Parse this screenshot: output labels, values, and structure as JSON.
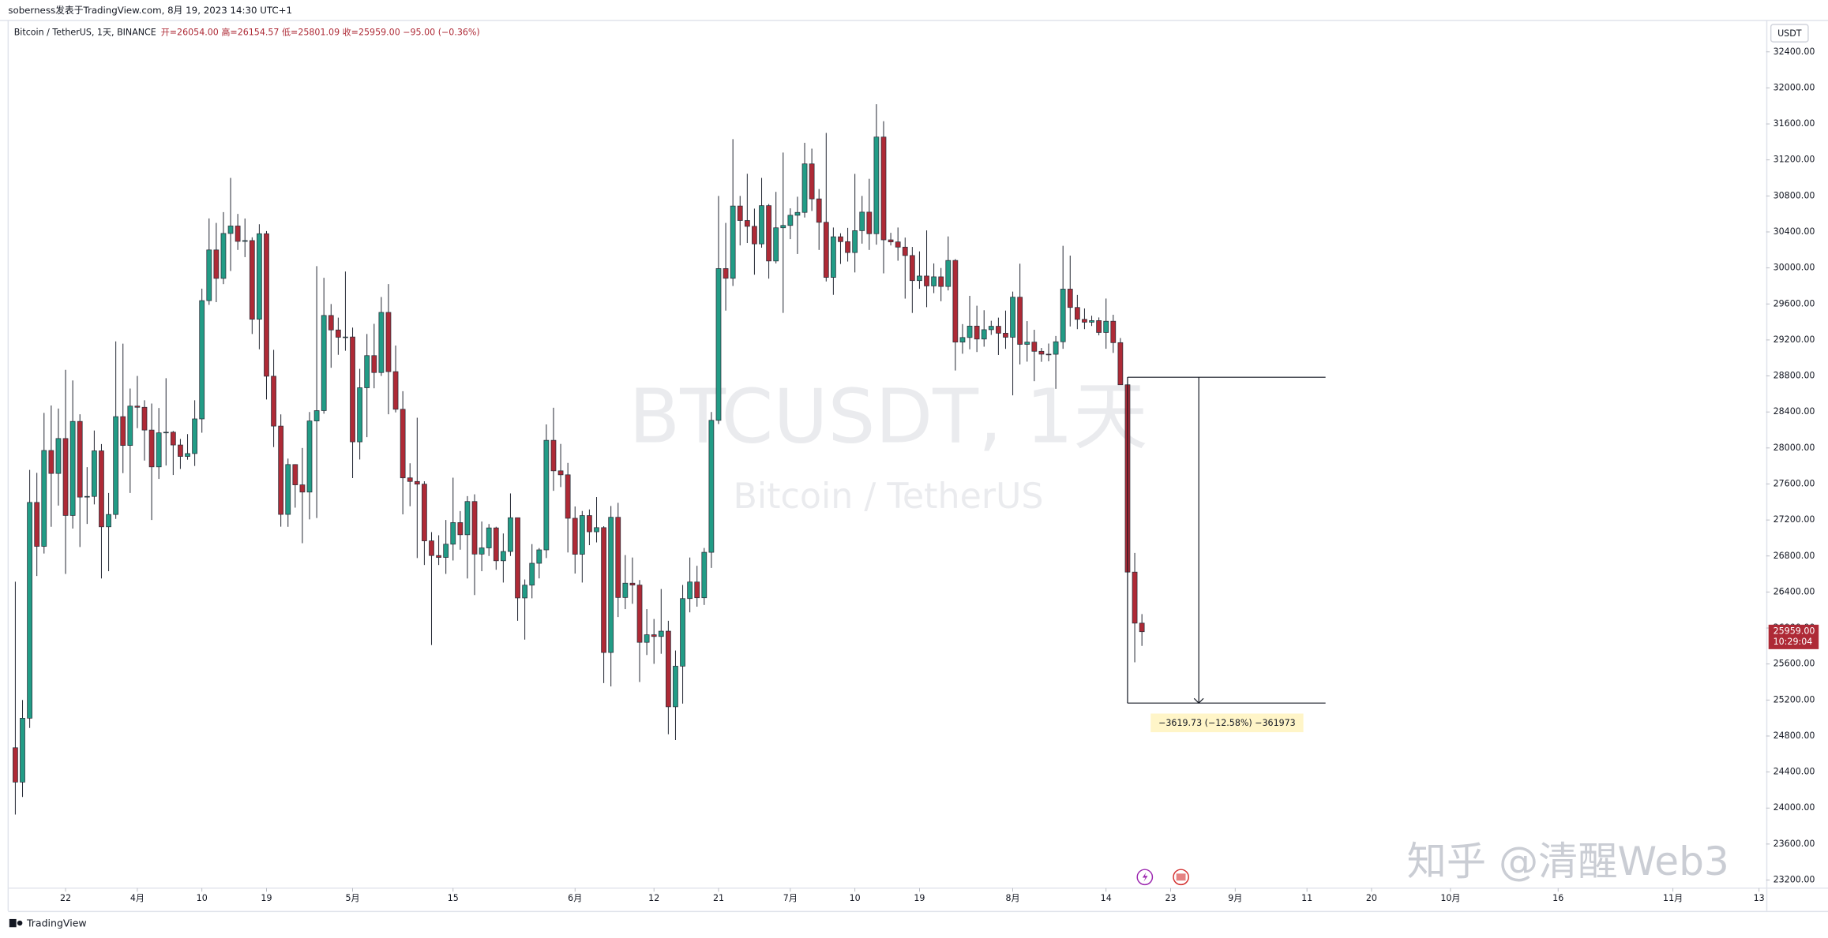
{
  "header": {
    "attribution": "soberness发表于TradingView.com, 8月 19, 2023 14:30 UTC+1",
    "symbol": "Bitcoin / TetherUS, 1天, BINANCE",
    "ohlc_text": "开=26054.00 高=26154.57 低=25801.09 收=25959.00 −95.00 (−0.36%)"
  },
  "watermark": {
    "line1": "BTCUSDT, 1天",
    "line2": "Bitcoin / TetherUS"
  },
  "footer": {
    "brand": "TradingView",
    "credit": "知乎 @清醒Web3"
  },
  "chart_data": {
    "type": "candlestick",
    "currency": "USDT",
    "colors": {
      "up": "#229c86",
      "down": "#ae2a36"
    },
    "xlim": [
      "2023-03-14",
      "2023-11-14"
    ],
    "ylim": [
      23110,
      32750
    ],
    "yticks": [
      {
        "value": 23200,
        "label": "23200.00"
      },
      {
        "value": 23600,
        "label": "23600.00"
      },
      {
        "value": 24000,
        "label": "24000.00"
      },
      {
        "value": 24400,
        "label": "24400.00"
      },
      {
        "value": 24800,
        "label": "24800.00"
      },
      {
        "value": 25200,
        "label": "25200.00"
      },
      {
        "value": 25600,
        "label": "25600.00"
      },
      {
        "value": 26000,
        "label": "26000.00"
      },
      {
        "value": 26400,
        "label": "26400.00"
      },
      {
        "value": 26800,
        "label": "26800.00"
      },
      {
        "value": 27200,
        "label": "27200.00"
      },
      {
        "value": 27600,
        "label": "27600.00"
      },
      {
        "value": 28000,
        "label": "28000.00"
      },
      {
        "value": 28400,
        "label": "28400.00"
      },
      {
        "value": 28800,
        "label": "28800.00"
      },
      {
        "value": 29200,
        "label": "29200.00"
      },
      {
        "value": 29600,
        "label": "29600.00"
      },
      {
        "value": 30000,
        "label": "30000.00"
      },
      {
        "value": 30400,
        "label": "30400.00"
      },
      {
        "value": 30800,
        "label": "30800.00"
      },
      {
        "value": 31200,
        "label": "31200.00"
      },
      {
        "value": 31600,
        "label": "31600.00"
      },
      {
        "value": 32000,
        "label": "32000.00"
      },
      {
        "value": 32400,
        "label": "32400.00"
      }
    ],
    "xticks": [
      {
        "value": "2023-03-22",
        "label": "22"
      },
      {
        "value": "2023-04-01",
        "label": "4月"
      },
      {
        "value": "2023-04-10",
        "label": "10"
      },
      {
        "value": "2023-04-19",
        "label": "19"
      },
      {
        "value": "2023-05-01",
        "label": "5月"
      },
      {
        "value": "2023-05-15",
        "label": "15"
      },
      {
        "value": "2023-06-01",
        "label": "6月"
      },
      {
        "value": "2023-06-12",
        "label": "12"
      },
      {
        "value": "2023-06-21",
        "label": "21"
      },
      {
        "value": "2023-07-01",
        "label": "7月"
      },
      {
        "value": "2023-07-10",
        "label": "10"
      },
      {
        "value": "2023-07-19",
        "label": "19"
      },
      {
        "value": "2023-08-01",
        "label": "8月"
      },
      {
        "value": "2023-08-14",
        "label": "14"
      },
      {
        "value": "2023-08-23",
        "label": "23"
      },
      {
        "value": "2023-09-01",
        "label": "9月"
      },
      {
        "value": "2023-09-11",
        "label": "11"
      },
      {
        "value": "2023-09-20",
        "label": "20"
      },
      {
        "value": "2023-10-01",
        "label": "10月"
      },
      {
        "value": "2023-10-16",
        "label": "16"
      },
      {
        "value": "2023-11-01",
        "label": "11月"
      },
      {
        "value": "2023-11-13",
        "label": "13"
      }
    ],
    "last_price": {
      "value": 25959,
      "label": "25959.00",
      "countdown": "10:29:04"
    },
    "measure": {
      "from": 28785.73,
      "to": 25166,
      "start": "2023-08-17",
      "end": "2023-08-31",
      "label": "−3619.73 (−12.58%) −361973"
    },
    "x": [
      "2023-03-15",
      "2023-03-16",
      "2023-03-17",
      "2023-03-18",
      "2023-03-19",
      "2023-03-20",
      "2023-03-21",
      "2023-03-22",
      "2023-03-23",
      "2023-03-24",
      "2023-03-25",
      "2023-03-26",
      "2023-03-27",
      "2023-03-28",
      "2023-03-29",
      "2023-03-30",
      "2023-03-31",
      "2023-04-01",
      "2023-04-02",
      "2023-04-03",
      "2023-04-04",
      "2023-04-05",
      "2023-04-06",
      "2023-04-07",
      "2023-04-08",
      "2023-04-09",
      "2023-04-10",
      "2023-04-11",
      "2023-04-12",
      "2023-04-13",
      "2023-04-14",
      "2023-04-15",
      "2023-04-16",
      "2023-04-17",
      "2023-04-18",
      "2023-04-19",
      "2023-04-20",
      "2023-04-21",
      "2023-04-22",
      "2023-04-23",
      "2023-04-24",
      "2023-04-25",
      "2023-04-26",
      "2023-04-27",
      "2023-04-28",
      "2023-04-29",
      "2023-04-30",
      "2023-05-01",
      "2023-05-02",
      "2023-05-03",
      "2023-05-04",
      "2023-05-05",
      "2023-05-06",
      "2023-05-07",
      "2023-05-08",
      "2023-05-09",
      "2023-05-10",
      "2023-05-11",
      "2023-05-12",
      "2023-05-13",
      "2023-05-14",
      "2023-05-15",
      "2023-05-16",
      "2023-05-17",
      "2023-05-18",
      "2023-05-19",
      "2023-05-20",
      "2023-05-21",
      "2023-05-22",
      "2023-05-23",
      "2023-05-24",
      "2023-05-25",
      "2023-05-26",
      "2023-05-27",
      "2023-05-28",
      "2023-05-29",
      "2023-05-30",
      "2023-05-31",
      "2023-06-01",
      "2023-06-02",
      "2023-06-03",
      "2023-06-04",
      "2023-06-05",
      "2023-06-06",
      "2023-06-07",
      "2023-06-08",
      "2023-06-09",
      "2023-06-10",
      "2023-06-11",
      "2023-06-12",
      "2023-06-13",
      "2023-06-14",
      "2023-06-15",
      "2023-06-16",
      "2023-06-17",
      "2023-06-18",
      "2023-06-19",
      "2023-06-20",
      "2023-06-21",
      "2023-06-22",
      "2023-06-23",
      "2023-06-24",
      "2023-06-25",
      "2023-06-26",
      "2023-06-27",
      "2023-06-28",
      "2023-06-29",
      "2023-06-30",
      "2023-07-01",
      "2023-07-02",
      "2023-07-03",
      "2023-07-04",
      "2023-07-05",
      "2023-07-06",
      "2023-07-07",
      "2023-07-08",
      "2023-07-09",
      "2023-07-10",
      "2023-07-11",
      "2023-07-12",
      "2023-07-13",
      "2023-07-14",
      "2023-07-15",
      "2023-07-16",
      "2023-07-17",
      "2023-07-18",
      "2023-07-19",
      "2023-07-20",
      "2023-07-21",
      "2023-07-22",
      "2023-07-23",
      "2023-07-24",
      "2023-07-25",
      "2023-07-26",
      "2023-07-27",
      "2023-07-28",
      "2023-07-29",
      "2023-07-30",
      "2023-07-31",
      "2023-08-01",
      "2023-08-02",
      "2023-08-03",
      "2023-08-04",
      "2023-08-05",
      "2023-08-06",
      "2023-08-07",
      "2023-08-08",
      "2023-08-09",
      "2023-08-10",
      "2023-08-11",
      "2023-08-12",
      "2023-08-13",
      "2023-08-14",
      "2023-08-15",
      "2023-08-16",
      "2023-08-17",
      "2023-08-18",
      "2023-08-19"
    ],
    "ohlc": [
      [
        24670,
        26514,
        23928,
        24288
      ],
      [
        24288,
        25200,
        24123,
        24998
      ],
      [
        24998,
        27756,
        24890,
        27395
      ],
      [
        27395,
        27724,
        26578,
        26907
      ],
      [
        26907,
        28390,
        26827,
        27972
      ],
      [
        27972,
        28472,
        27124,
        27717
      ],
      [
        27717,
        28438,
        27360,
        28105
      ],
      [
        28105,
        28868,
        26601,
        27250
      ],
      [
        27250,
        28750,
        27105,
        28295
      ],
      [
        28295,
        28374,
        26900,
        27454
      ],
      [
        27454,
        27787,
        27156,
        27462
      ],
      [
        27462,
        28194,
        27373,
        27968
      ],
      [
        27968,
        28043,
        26550,
        27124
      ],
      [
        27124,
        27500,
        26631,
        27261
      ],
      [
        27261,
        29184,
        27212,
        28348
      ],
      [
        28348,
        29159,
        27720,
        28028
      ],
      [
        28028,
        28660,
        27500,
        28465
      ],
      [
        28465,
        28800,
        28220,
        28452
      ],
      [
        28452,
        28530,
        27860,
        28199
      ],
      [
        28199,
        28494,
        27200,
        27790
      ],
      [
        27790,
        28444,
        27656,
        28168
      ],
      [
        28168,
        28775,
        27805,
        28175
      ],
      [
        28175,
        28189,
        27700,
        28033
      ],
      [
        28033,
        28100,
        27767,
        27906
      ],
      [
        27906,
        28154,
        27870,
        27938
      ],
      [
        27938,
        28530,
        27800,
        28323
      ],
      [
        28323,
        29770,
        28170,
        29637
      ],
      [
        29637,
        30550,
        29590,
        30200
      ],
      [
        30200,
        30500,
        29620,
        29884
      ],
      [
        29884,
        30620,
        29820,
        30383
      ],
      [
        30383,
        31000,
        29966,
        30466
      ],
      [
        30466,
        30600,
        30200,
        30295
      ],
      [
        30295,
        30549,
        30120,
        30304
      ],
      [
        30304,
        30340,
        29266,
        29430
      ],
      [
        29430,
        30485,
        29096,
        30380
      ],
      [
        30380,
        30410,
        28539,
        28797
      ],
      [
        28797,
        29090,
        28010,
        28243
      ],
      [
        28243,
        28373,
        27125,
        27262
      ],
      [
        27262,
        27882,
        27124,
        27816
      ],
      [
        27816,
        27820,
        27337,
        27590
      ],
      [
        27590,
        28000,
        26942,
        27510
      ],
      [
        27510,
        28399,
        27207,
        28300
      ],
      [
        28300,
        30020,
        27222,
        28415
      ],
      [
        28415,
        29890,
        28381,
        29472
      ],
      [
        29472,
        29599,
        28891,
        29311
      ],
      [
        29311,
        29448,
        29035,
        29230
      ],
      [
        29230,
        29960,
        29080,
        29233
      ],
      [
        29233,
        29337,
        27666,
        28068
      ],
      [
        28068,
        28879,
        27872,
        28669
      ],
      [
        28669,
        29266,
        28120,
        29026
      ],
      [
        29026,
        29379,
        28663,
        28838
      ],
      [
        28838,
        29677,
        28800,
        29506
      ],
      [
        29506,
        29820,
        28374,
        28848
      ],
      [
        28848,
        29138,
        28395,
        28430
      ],
      [
        28430,
        28631,
        27262,
        27668
      ],
      [
        27668,
        27830,
        27353,
        27628
      ],
      [
        27628,
        28336,
        26777,
        27598
      ],
      [
        27598,
        27630,
        26700,
        26968
      ],
      [
        26968,
        27065,
        25811,
        26805
      ],
      [
        26805,
        27030,
        26700,
        26784
      ],
      [
        26784,
        27200,
        26601,
        26931
      ],
      [
        26931,
        27670,
        26750,
        27171
      ],
      [
        27171,
        27299,
        26870,
        27036
      ],
      [
        27036,
        27465,
        26550,
        27405
      ],
      [
        27405,
        27485,
        26366,
        26821
      ],
      [
        26821,
        27183,
        26631,
        26890
      ],
      [
        26890,
        27155,
        26800,
        27112
      ],
      [
        27112,
        27125,
        26647,
        26747
      ],
      [
        26747,
        27050,
        26505,
        26850
      ],
      [
        26850,
        27495,
        26800,
        27225
      ],
      [
        27225,
        27225,
        26080,
        26334
      ],
      [
        26334,
        26539,
        25871,
        26476
      ],
      [
        26476,
        26932,
        26330,
        26719
      ],
      [
        26719,
        26888,
        26551,
        26868
      ],
      [
        26868,
        28261,
        26777,
        28085
      ],
      [
        28085,
        28447,
        27524,
        27746
      ],
      [
        27746,
        28045,
        27566,
        27702
      ],
      [
        27702,
        27834,
        26839,
        27219
      ],
      [
        27219,
        27350,
        26605,
        26819
      ],
      [
        26819,
        27300,
        26505,
        27249
      ],
      [
        27249,
        27317,
        26920,
        27069
      ],
      [
        27069,
        27455,
        26951,
        27115
      ],
      [
        27115,
        27131,
        25388,
        25728
      ],
      [
        25728,
        27355,
        25351,
        27230
      ],
      [
        27230,
        27391,
        26122,
        26339
      ],
      [
        26339,
        26810,
        26210,
        26498
      ],
      [
        26498,
        26783,
        26269,
        26477
      ],
      [
        26477,
        26533,
        25400,
        25841
      ],
      [
        25841,
        26210,
        25700,
        25925
      ],
      [
        25925,
        26100,
        25602,
        25906
      ],
      [
        25906,
        26433,
        25714,
        25965
      ],
      [
        25965,
        26080,
        24820,
        25125
      ],
      [
        25125,
        25750,
        24756,
        25576
      ],
      [
        25576,
        26478,
        25160,
        26327
      ],
      [
        26327,
        26783,
        26174,
        26511
      ],
      [
        26511,
        26691,
        26237,
        26336
      ],
      [
        26336,
        26889,
        26256,
        26841
      ],
      [
        26841,
        28400,
        26668,
        28307
      ],
      [
        28307,
        30800,
        28266,
        29993
      ],
      [
        29993,
        30500,
        29526,
        29885
      ],
      [
        29885,
        31431,
        29800,
        30688
      ],
      [
        30688,
        30800,
        30250,
        30527
      ],
      [
        30527,
        31046,
        30277,
        30462
      ],
      [
        30462,
        30659,
        29925,
        30267
      ],
      [
        30267,
        31000,
        30225,
        30692
      ],
      [
        30692,
        30710,
        29881,
        30077
      ],
      [
        30077,
        30845,
        30050,
        30446
      ],
      [
        30446,
        31282,
        29500,
        30472
      ],
      [
        30472,
        30662,
        30320,
        30585
      ],
      [
        30585,
        30791,
        30155,
        30617
      ],
      [
        30617,
        31390,
        30560,
        31156
      ],
      [
        31156,
        31325,
        30633,
        30767
      ],
      [
        30767,
        30876,
        30200,
        30507
      ],
      [
        30507,
        31500,
        29850,
        29895
      ],
      [
        29895,
        30449,
        29701,
        30346
      ],
      [
        30346,
        30385,
        30044,
        30292
      ],
      [
        30292,
        30445,
        30071,
        30171
      ],
      [
        30171,
        31045,
        29950,
        30414
      ],
      [
        30414,
        30800,
        30270,
        30620
      ],
      [
        30620,
        30990,
        30200,
        30380
      ],
      [
        30380,
        31818,
        30259,
        31454
      ],
      [
        31454,
        31630,
        29940,
        30312
      ],
      [
        30312,
        30390,
        30250,
        30289
      ],
      [
        30289,
        30449,
        30080,
        30231
      ],
      [
        30231,
        30337,
        29659,
        30138
      ],
      [
        30138,
        30233,
        29500,
        29859
      ],
      [
        29859,
        30184,
        29768,
        29910
      ],
      [
        29910,
        30417,
        29564,
        29800
      ],
      [
        29800,
        30050,
        29720,
        29901
      ],
      [
        29901,
        29999,
        29630,
        29794
      ],
      [
        29794,
        30350,
        29750,
        30083
      ],
      [
        30083,
        30099,
        28861,
        29176
      ],
      [
        29176,
        29376,
        29047,
        29227
      ],
      [
        29227,
        29690,
        29096,
        29354
      ],
      [
        29354,
        29580,
        29066,
        29210
      ],
      [
        29210,
        29530,
        29125,
        29314
      ],
      [
        29314,
        29413,
        29256,
        29352
      ],
      [
        29352,
        29448,
        29033,
        29275
      ],
      [
        29275,
        29526,
        29101,
        29230
      ],
      [
        29230,
        29737,
        28585,
        29675
      ],
      [
        29675,
        30047,
        28927,
        29151
      ],
      [
        29151,
        29409,
        28959,
        29176
      ],
      [
        29176,
        29313,
        28742,
        29074
      ],
      [
        29074,
        29111,
        28957,
        29042
      ],
      [
        29042,
        29160,
        28963,
        29041
      ],
      [
        29041,
        29244,
        28657,
        29180
      ],
      [
        29180,
        30245,
        29102,
        29765
      ],
      [
        29765,
        30137,
        29350,
        29561
      ],
      [
        29561,
        29700,
        29320,
        29429
      ],
      [
        29429,
        29550,
        29320,
        29397
      ],
      [
        29397,
        29469,
        29355,
        29415
      ],
      [
        29415,
        29450,
        29251,
        29283
      ],
      [
        29283,
        29660,
        29102,
        29408
      ],
      [
        29408,
        29480,
        29056,
        29170
      ],
      [
        29170,
        29221,
        28701,
        28702
      ],
      [
        28702,
        28786,
        25166,
        26621
      ],
      [
        26621,
        26834,
        25619,
        26054
      ],
      [
        26054,
        26154.57,
        25801.09,
        25959
      ]
    ]
  }
}
